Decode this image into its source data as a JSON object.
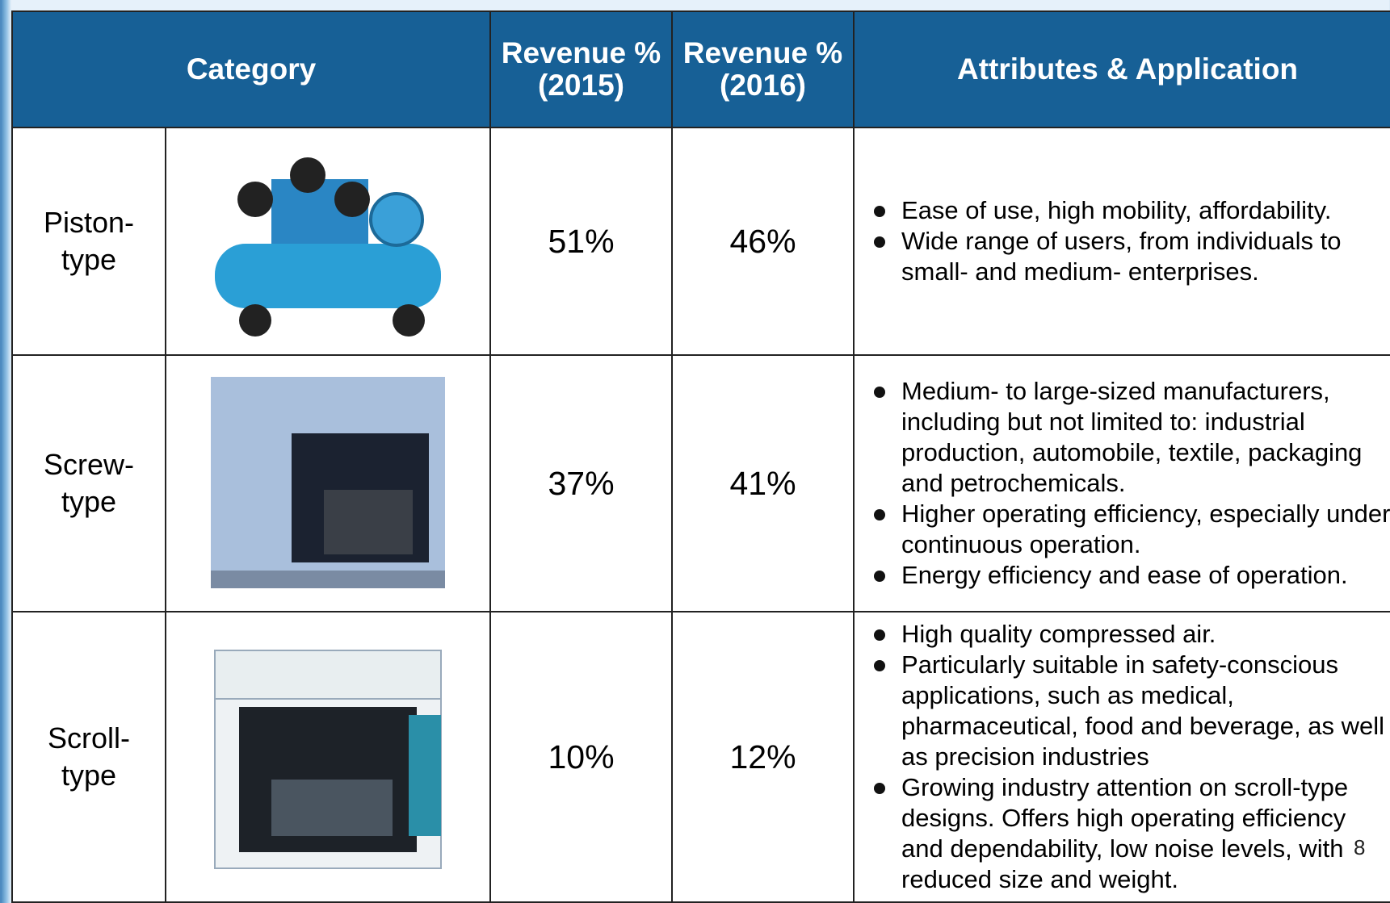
{
  "table": {
    "header": [
      "Category",
      "Revenue % (2015)",
      "Revenue % (2016)",
      "Attributes & Application"
    ],
    "rows": [
      {
        "category": "Piston-type",
        "revenue_2015": "51%",
        "revenue_2016": "46%",
        "attributes": [
          "Ease of use, high mobility, affordability.",
          "Wide range of users, from individuals to small- and medium- enterprises."
        ]
      },
      {
        "category": "Screw-type",
        "revenue_2015": "37%",
        "revenue_2016": "41%",
        "attributes": [
          "Medium- to large-sized manufacturers, including but not limited to: industrial production, automobile, textile, packaging and petrochemicals.",
          "Higher operating efficiency, especially under continuous operation.",
          "Energy efficiency and ease of operation."
        ]
      },
      {
        "category": "Scroll-type",
        "revenue_2015": "10%",
        "revenue_2016": "12%",
        "attributes": [
          "High quality compressed air.",
          "Particularly suitable in safety-conscious applications, such as medical, pharmaceutical, food and beverage, as well as precision industries",
          "Growing industry attention on scroll-type designs.  Offers high operating efficiency and dependability, low noise levels, with reduced size and weight."
        ]
      }
    ]
  },
  "page_number": "8"
}
